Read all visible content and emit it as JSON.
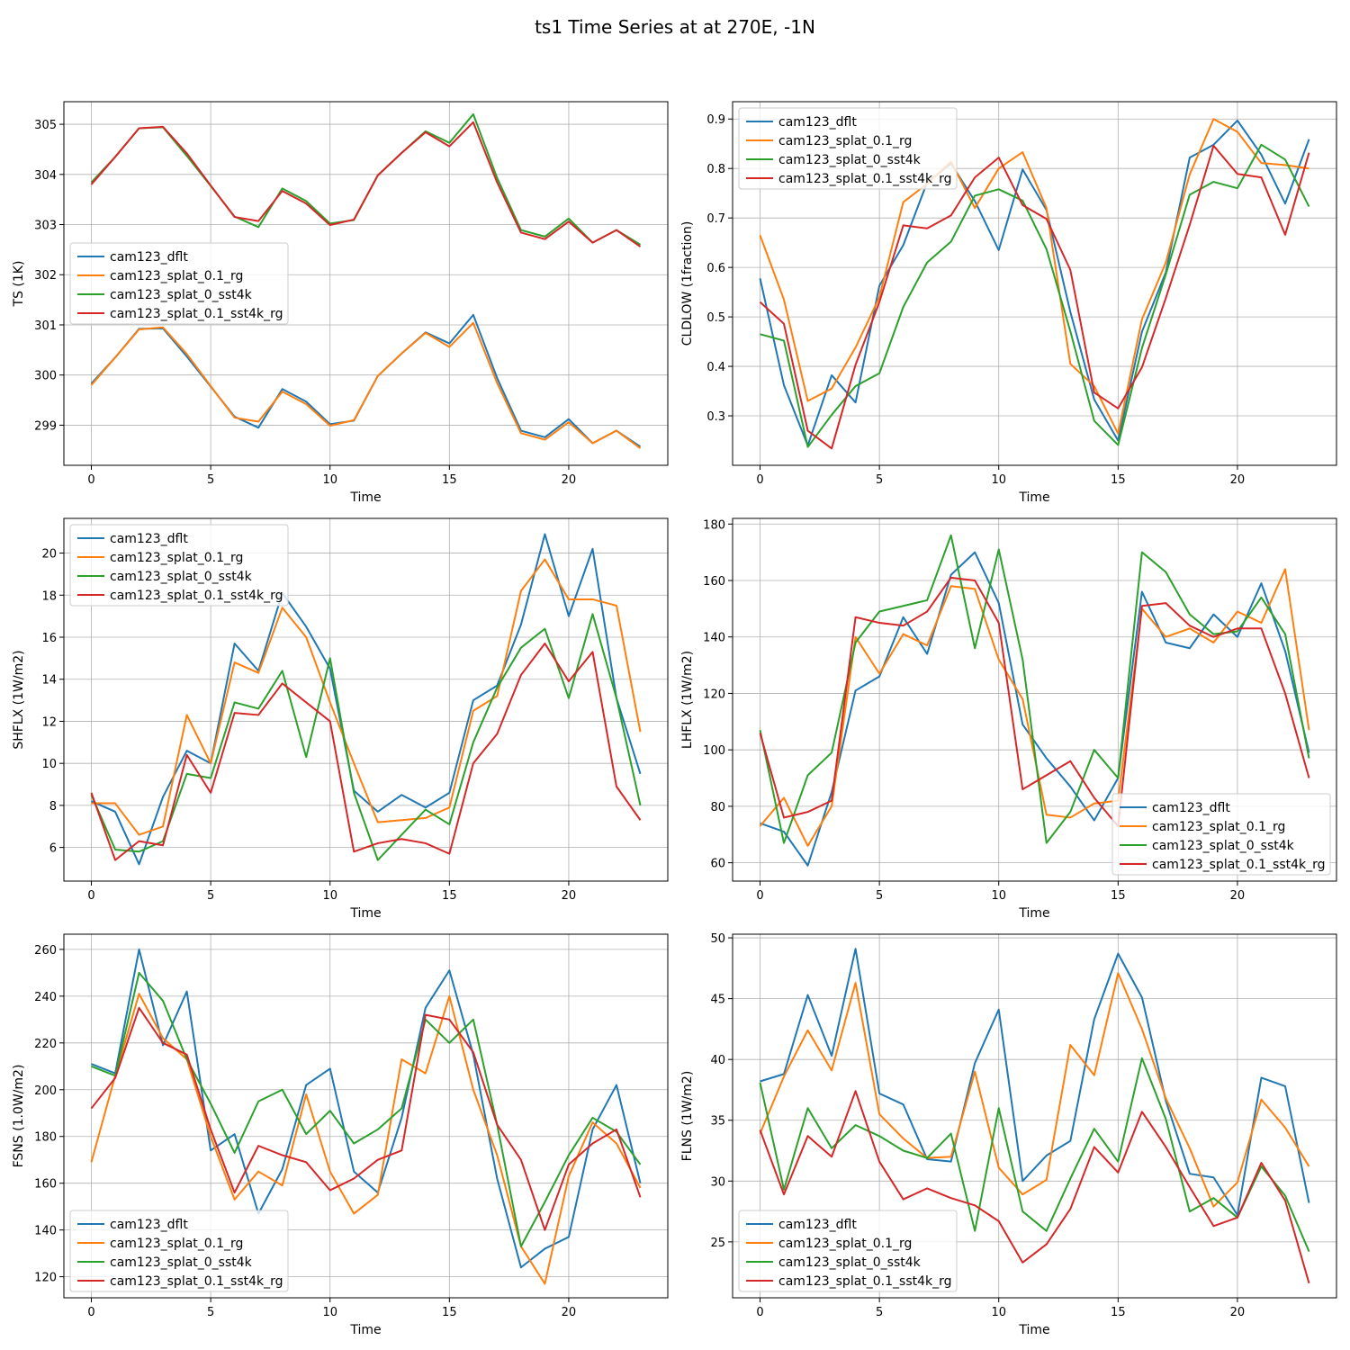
{
  "figure": {
    "title": "ts1 Time Series at at 270E, -1N"
  },
  "chart_data": [
    {
      "type": "line",
      "title": "",
      "xlabel": "Time",
      "ylabel": "TS (1K)",
      "x": [
        0,
        1,
        2,
        3,
        4,
        5,
        6,
        7,
        8,
        9,
        10,
        11,
        12,
        13,
        14,
        15,
        16,
        17,
        18,
        19,
        20,
        21,
        22,
        23
      ],
      "xlim": [
        -1.15,
        24.15
      ],
      "ylim": [
        298.2,
        305.45
      ],
      "xticks": [
        0,
        5,
        10,
        15,
        20
      ],
      "yticks": [
        299,
        300,
        301,
        302,
        303,
        304,
        305
      ],
      "grid": true,
      "legend_loc": "center-left",
      "series": [
        {
          "name": "cam123_dflt",
          "color": "#1f77b4",
          "values": [
            299.83,
            300.35,
            300.92,
            300.93,
            300.37,
            299.77,
            299.17,
            298.95,
            299.72,
            299.47,
            299.02,
            299.09,
            299.98,
            300.43,
            300.85,
            300.63,
            301.2,
            299.94,
            298.89,
            298.76,
            299.12,
            298.64,
            298.89,
            298.57
          ]
        },
        {
          "name": "cam123_splat_0.1_rg",
          "color": "#ff7f0e",
          "values": [
            299.8,
            300.35,
            300.91,
            300.95,
            300.42,
            299.78,
            299.15,
            299.07,
            299.67,
            299.42,
            298.99,
            299.1,
            299.98,
            300.43,
            300.84,
            300.56,
            301.04,
            299.84,
            298.84,
            298.71,
            299.06,
            298.64,
            298.89,
            298.54
          ]
        },
        {
          "name": "cam123_splat_0_sst4k",
          "color": "#2ca02c",
          "values": [
            303.84,
            304.35,
            304.92,
            304.94,
            304.37,
            303.77,
            303.16,
            302.95,
            303.72,
            303.47,
            303.02,
            303.09,
            303.98,
            304.43,
            304.86,
            304.63,
            305.2,
            303.93,
            302.89,
            302.76,
            303.12,
            302.64,
            302.89,
            302.6
          ]
        },
        {
          "name": "cam123_splat_0.1_sst4k_rg",
          "color": "#d62728",
          "values": [
            303.8,
            304.35,
            304.92,
            304.95,
            304.42,
            303.78,
            303.15,
            303.07,
            303.67,
            303.42,
            302.99,
            303.1,
            303.98,
            304.43,
            304.84,
            304.56,
            305.04,
            303.84,
            302.84,
            302.71,
            303.06,
            302.64,
            302.89,
            302.56
          ]
        }
      ]
    },
    {
      "type": "line",
      "title": "",
      "xlabel": "Time",
      "ylabel": "CLDLOW (1fraction)",
      "x": [
        0,
        1,
        2,
        3,
        4,
        5,
        6,
        7,
        8,
        9,
        10,
        11,
        12,
        13,
        14,
        15,
        16,
        17,
        18,
        19,
        20,
        21,
        22,
        23
      ],
      "xlim": [
        -1.15,
        24.15
      ],
      "ylim": [
        0.2,
        0.935
      ],
      "xticks": [
        0,
        5,
        10,
        15,
        20
      ],
      "yticks": [
        0.3,
        0.4,
        0.5,
        0.6,
        0.7,
        0.8,
        0.9
      ],
      "grid": true,
      "legend_loc": "upper-left",
      "series": [
        {
          "name": "cam123_dflt",
          "color": "#1f77b4",
          "values": [
            0.578,
            0.362,
            0.24,
            0.382,
            0.327,
            0.563,
            0.645,
            0.772,
            0.81,
            0.734,
            0.635,
            0.798,
            0.716,
            0.51,
            0.333,
            0.25,
            0.47,
            0.59,
            0.822,
            0.848,
            0.897,
            0.828,
            0.729,
            0.859
          ]
        },
        {
          "name": "cam123_splat_0.1_rg",
          "color": "#ff7f0e",
          "values": [
            0.665,
            0.535,
            0.33,
            0.355,
            0.438,
            0.54,
            0.732,
            0.769,
            0.814,
            0.72,
            0.8,
            0.833,
            0.72,
            0.405,
            0.36,
            0.264,
            0.495,
            0.61,
            0.788,
            0.9,
            0.874,
            0.811,
            0.807,
            0.8
          ]
        },
        {
          "name": "cam123_splat_0_sst4k",
          "color": "#2ca02c",
          "values": [
            0.465,
            0.452,
            0.237,
            0.302,
            0.36,
            0.386,
            0.52,
            0.61,
            0.652,
            0.745,
            0.758,
            0.735,
            0.637,
            0.471,
            0.29,
            0.241,
            0.437,
            0.586,
            0.747,
            0.773,
            0.76,
            0.848,
            0.818,
            0.723
          ]
        },
        {
          "name": "cam123_splat_0.1_sst4k_rg",
          "color": "#d62728",
          "values": [
            0.53,
            0.486,
            0.27,
            0.234,
            0.403,
            0.53,
            0.685,
            0.679,
            0.705,
            0.782,
            0.822,
            0.726,
            0.698,
            0.595,
            0.347,
            0.315,
            0.398,
            0.538,
            0.686,
            0.846,
            0.789,
            0.782,
            0.666,
            0.832
          ]
        }
      ]
    },
    {
      "type": "line",
      "title": "",
      "xlabel": "Time",
      "ylabel": "SHFLX (1W/m2)",
      "x": [
        0,
        1,
        2,
        3,
        4,
        5,
        6,
        7,
        8,
        9,
        10,
        11,
        12,
        13,
        14,
        15,
        16,
        17,
        18,
        19,
        20,
        21,
        22,
        23
      ],
      "xlim": [
        -1.15,
        24.15
      ],
      "ylim": [
        4.4,
        21.65
      ],
      "xticks": [
        0,
        5,
        10,
        15,
        20
      ],
      "yticks": [
        6,
        8,
        10,
        12,
        14,
        16,
        18,
        20
      ],
      "grid": true,
      "legend_loc": "upper-left",
      "series": [
        {
          "name": "cam123_dflt",
          "color": "#1f77b4",
          "values": [
            8.2,
            7.7,
            5.2,
            8.4,
            10.6,
            10.0,
            15.7,
            14.4,
            18.1,
            16.5,
            14.5,
            8.7,
            7.7,
            8.5,
            7.9,
            8.6,
            13.0,
            13.7,
            16.6,
            20.9,
            17.0,
            20.2,
            13.1,
            9.5
          ]
        },
        {
          "name": "cam123_splat_0.1_rg",
          "color": "#ff7f0e",
          "values": [
            8.1,
            8.1,
            6.6,
            7.0,
            12.3,
            10.0,
            14.8,
            14.3,
            17.4,
            16.0,
            12.9,
            10.0,
            7.2,
            7.3,
            7.4,
            7.9,
            12.5,
            13.2,
            18.2,
            19.7,
            17.8,
            17.8,
            17.5,
            11.5
          ]
        },
        {
          "name": "cam123_splat_0_sst4k",
          "color": "#2ca02c",
          "values": [
            8.5,
            5.9,
            5.8,
            6.3,
            9.5,
            9.3,
            12.9,
            12.6,
            14.4,
            10.3,
            15.0,
            8.6,
            5.4,
            6.6,
            7.8,
            7.1,
            11.0,
            13.6,
            15.5,
            16.4,
            13.1,
            17.1,
            13.1,
            8.0
          ]
        },
        {
          "name": "cam123_splat_0.1_sst4k_rg",
          "color": "#d62728",
          "values": [
            8.6,
            5.4,
            6.3,
            6.1,
            10.4,
            8.6,
            12.4,
            12.3,
            13.8,
            12.9,
            12.0,
            5.8,
            6.2,
            6.4,
            6.2,
            5.7,
            10.0,
            11.4,
            14.2,
            15.7,
            13.9,
            15.3,
            8.9,
            7.3
          ]
        }
      ]
    },
    {
      "type": "line",
      "title": "",
      "xlabel": "Time",
      "ylabel": "LHFLX (1W/m2)",
      "x": [
        0,
        1,
        2,
        3,
        4,
        5,
        6,
        7,
        8,
        9,
        10,
        11,
        12,
        13,
        14,
        15,
        16,
        17,
        18,
        19,
        20,
        21,
        22,
        23
      ],
      "xlim": [
        -1.15,
        24.15
      ],
      "ylim": [
        53.5,
        182
      ],
      "xticks": [
        0,
        5,
        10,
        15,
        20
      ],
      "yticks": [
        60,
        80,
        100,
        120,
        140,
        160,
        180
      ],
      "grid": true,
      "legend_loc": "lower-right",
      "series": [
        {
          "name": "cam123_dflt",
          "color": "#1f77b4",
          "values": [
            74,
            71,
            59,
            85,
            121,
            126,
            147,
            134,
            162,
            170,
            152,
            109,
            97,
            87,
            75,
            90,
            156,
            138,
            136,
            148,
            140,
            159,
            135,
            99
          ]
        },
        {
          "name": "cam123_splat_0.1_rg",
          "color": "#ff7f0e",
          "values": [
            73,
            83,
            66,
            80,
            140,
            127,
            141,
            137,
            158,
            157,
            132,
            118,
            77,
            76,
            81,
            82,
            150,
            140,
            143,
            138,
            149,
            145,
            164,
            107
          ]
        },
        {
          "name": "cam123_splat_0_sst4k",
          "color": "#2ca02c",
          "values": [
            107,
            67,
            91,
            99,
            138,
            149,
            151,
            153,
            176,
            136,
            171,
            132,
            67,
            78,
            100,
            90,
            170,
            163,
            148,
            141,
            142,
            154,
            141,
            97
          ]
        },
        {
          "name": "cam123_splat_0.1_sst4k_rg",
          "color": "#d62728",
          "values": [
            106,
            76,
            78,
            82,
            147,
            145,
            144,
            149,
            161,
            160,
            145,
            86,
            91,
            96,
            83,
            73,
            151,
            152,
            144,
            140,
            143,
            143,
            120,
            90
          ]
        }
      ]
    },
    {
      "type": "line",
      "title": "",
      "xlabel": "Time",
      "ylabel": "FSNS (1.0W/m2)",
      "x": [
        0,
        1,
        2,
        3,
        4,
        5,
        6,
        7,
        8,
        9,
        10,
        11,
        12,
        13,
        14,
        15,
        16,
        17,
        18,
        19,
        20,
        21,
        22,
        23
      ],
      "xlim": [
        -1.15,
        24.15
      ],
      "ylim": [
        111,
        266.5
      ],
      "xticks": [
        0,
        5,
        10,
        15,
        20
      ],
      "yticks": [
        120,
        140,
        160,
        180,
        200,
        220,
        240,
        260
      ],
      "grid": true,
      "legend_loc": "lower-left",
      "series": [
        {
          "name": "cam123_dflt",
          "color": "#1f77b4",
          "values": [
            211,
            207,
            260,
            219,
            242,
            174,
            181,
            147,
            166,
            202,
            209,
            165,
            156,
            188,
            235,
            251,
            215,
            162,
            124,
            132,
            137,
            183,
            202,
            160
          ]
        },
        {
          "name": "cam123_splat_0.1_rg",
          "color": "#ff7f0e",
          "values": [
            169,
            206,
            241,
            222,
            213,
            180,
            153,
            165,
            159,
            198,
            165,
            147,
            155,
            213,
            207,
            240,
            200,
            172,
            133,
            117,
            163,
            186,
            177,
            158
          ]
        },
        {
          "name": "cam123_splat_0_sst4k",
          "color": "#2ca02c",
          "values": [
            210,
            206,
            250,
            238,
            213,
            194,
            173,
            195,
            200,
            181,
            191,
            177,
            183,
            192,
            230,
            220,
            230,
            185,
            133,
            152,
            172,
            188,
            182,
            168
          ]
        },
        {
          "name": "cam123_splat_0.1_sst4k_rg",
          "color": "#d62728",
          "values": [
            192,
            205,
            235,
            220,
            215,
            183,
            156,
            176,
            172,
            169,
            157,
            162,
            170,
            174,
            232,
            230,
            216,
            185,
            170,
            140,
            168,
            177,
            183,
            154
          ]
        }
      ]
    },
    {
      "type": "line",
      "title": "",
      "xlabel": "Time",
      "ylabel": "FLNS (1W/m2)",
      "x": [
        0,
        1,
        2,
        3,
        4,
        5,
        6,
        7,
        8,
        9,
        10,
        11,
        12,
        13,
        14,
        15,
        16,
        17,
        18,
        19,
        20,
        21,
        22,
        23
      ],
      "xlim": [
        -1.15,
        24.15
      ],
      "ylim": [
        20.4,
        50.3
      ],
      "xticks": [
        0,
        5,
        10,
        15,
        20
      ],
      "yticks": [
        25,
        30,
        35,
        40,
        45,
        50
      ],
      "grid": true,
      "legend_loc": "lower-left",
      "series": [
        {
          "name": "cam123_dflt",
          "color": "#1f77b4",
          "values": [
            38.2,
            38.8,
            45.3,
            40.3,
            49.1,
            37.2,
            36.3,
            31.8,
            31.6,
            39.7,
            44.1,
            30.0,
            32.1,
            33.3,
            43.3,
            48.7,
            45.1,
            36.6,
            30.6,
            30.3,
            27.2,
            38.5,
            37.8,
            28.2
          ]
        },
        {
          "name": "cam123_splat_0.1_rg",
          "color": "#ff7f0e",
          "values": [
            33.9,
            38.6,
            42.4,
            39.1,
            46.3,
            35.5,
            33.5,
            31.9,
            32.0,
            39.0,
            31.1,
            28.9,
            30.1,
            41.2,
            38.7,
            47.1,
            42.5,
            36.8,
            32.7,
            27.9,
            29.9,
            36.7,
            34.4,
            31.2
          ]
        },
        {
          "name": "cam123_splat_0_sst4k",
          "color": "#2ca02c",
          "values": [
            38.1,
            29.3,
            36.0,
            32.7,
            34.6,
            33.7,
            32.5,
            31.9,
            33.9,
            25.9,
            36.0,
            27.5,
            25.9,
            30.2,
            34.3,
            31.6,
            40.1,
            35.1,
            27.5,
            28.6,
            27.0,
            31.2,
            28.8,
            24.2
          ]
        },
        {
          "name": "cam123_splat_0.1_sst4k_rg",
          "color": "#d62728",
          "values": [
            34.2,
            28.9,
            33.7,
            32.0,
            37.4,
            31.6,
            28.5,
            29.4,
            28.6,
            28.0,
            26.7,
            23.3,
            24.8,
            27.7,
            32.8,
            30.7,
            35.7,
            32.8,
            29.5,
            26.3,
            27.0,
            31.5,
            28.4,
            21.6
          ]
        }
      ]
    }
  ]
}
